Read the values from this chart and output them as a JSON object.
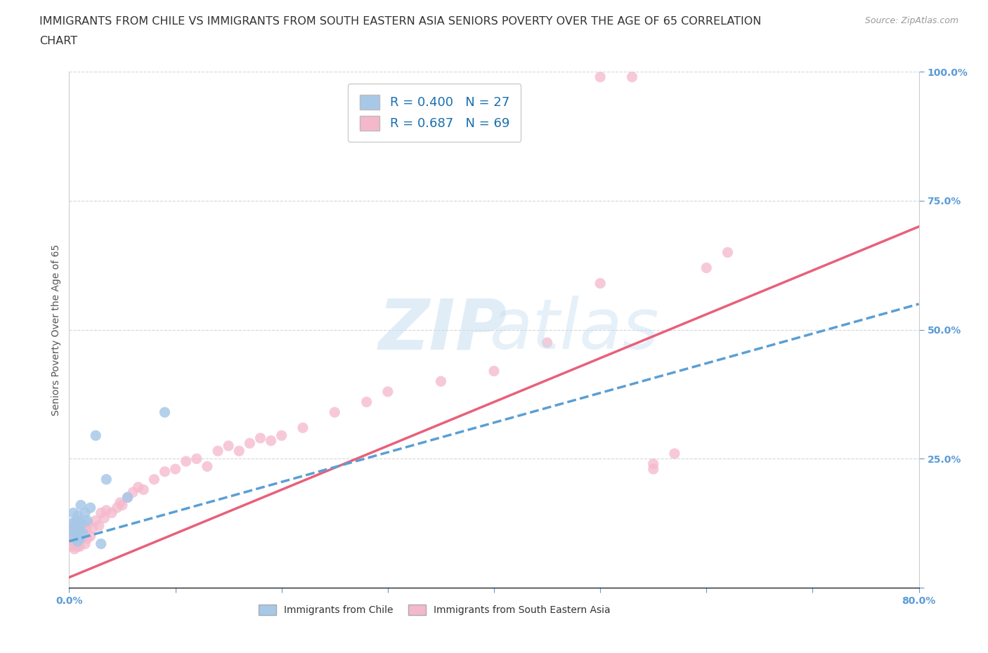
{
  "title_line1": "IMMIGRANTS FROM CHILE VS IMMIGRANTS FROM SOUTH EASTERN ASIA SENIORS POVERTY OVER THE AGE OF 65 CORRELATION",
  "title_line2": "CHART",
  "source": "Source: ZipAtlas.com",
  "ylabel": "Seniors Poverty Over the Age of 65",
  "xmin": 0.0,
  "xmax": 0.8,
  "ymin": 0.0,
  "ymax": 1.0,
  "xticks": [
    0.0,
    0.1,
    0.2,
    0.3,
    0.4,
    0.5,
    0.6,
    0.7,
    0.8
  ],
  "yticks": [
    0.0,
    0.25,
    0.5,
    0.75,
    1.0
  ],
  "ytick_labels": [
    "",
    "25.0%",
    "50.0%",
    "75.0%",
    "100.0%"
  ],
  "xtick_labels": [
    "0.0%",
    "",
    "",
    "",
    "",
    "",
    "",
    "",
    "80.0%"
  ],
  "chile_color": "#a8c8e8",
  "sea_color": "#f5b8cb",
  "chile_line_color": "#5a9fd4",
  "sea_line_color": "#e8607a",
  "R_chile": 0.4,
  "N_chile": 27,
  "R_sea": 0.687,
  "N_sea": 69,
  "background_color": "#ffffff",
  "grid_color": "#cccccc",
  "tick_color": "#5b9bd5",
  "title_fontsize": 11.5,
  "axis_label_fontsize": 10,
  "tick_fontsize": 10,
  "legend_fontsize": 13,
  "chile_scatter_x": [
    0.002,
    0.003,
    0.004,
    0.004,
    0.005,
    0.005,
    0.006,
    0.006,
    0.007,
    0.007,
    0.008,
    0.008,
    0.009,
    0.009,
    0.01,
    0.01,
    0.011,
    0.012,
    0.013,
    0.015,
    0.017,
    0.02,
    0.025,
    0.035,
    0.055,
    0.09,
    0.03
  ],
  "chile_scatter_y": [
    0.115,
    0.125,
    0.1,
    0.145,
    0.11,
    0.125,
    0.095,
    0.12,
    0.13,
    0.105,
    0.09,
    0.14,
    0.115,
    0.13,
    0.11,
    0.095,
    0.16,
    0.125,
    0.105,
    0.145,
    0.13,
    0.155,
    0.295,
    0.21,
    0.175,
    0.34,
    0.085
  ],
  "sea_scatter_x": [
    0.001,
    0.002,
    0.003,
    0.003,
    0.004,
    0.004,
    0.005,
    0.005,
    0.006,
    0.006,
    0.007,
    0.007,
    0.008,
    0.008,
    0.009,
    0.009,
    0.01,
    0.01,
    0.011,
    0.012,
    0.013,
    0.014,
    0.015,
    0.016,
    0.017,
    0.018,
    0.02,
    0.022,
    0.025,
    0.028,
    0.03,
    0.033,
    0.035,
    0.04,
    0.045,
    0.048,
    0.05,
    0.055,
    0.06,
    0.065,
    0.07,
    0.08,
    0.09,
    0.1,
    0.11,
    0.12,
    0.13,
    0.14,
    0.15,
    0.16,
    0.17,
    0.18,
    0.19,
    0.2,
    0.22,
    0.25,
    0.28,
    0.3,
    0.35,
    0.4,
    0.45,
    0.5,
    0.55,
    0.6,
    0.62,
    0.5,
    0.53,
    0.55,
    0.57
  ],
  "sea_scatter_y": [
    0.095,
    0.105,
    0.08,
    0.115,
    0.09,
    0.12,
    0.075,
    0.1,
    0.085,
    0.11,
    0.095,
    0.125,
    0.08,
    0.105,
    0.09,
    0.115,
    0.1,
    0.08,
    0.11,
    0.095,
    0.12,
    0.105,
    0.085,
    0.115,
    0.095,
    0.125,
    0.1,
    0.115,
    0.13,
    0.12,
    0.145,
    0.135,
    0.15,
    0.145,
    0.155,
    0.165,
    0.16,
    0.175,
    0.185,
    0.195,
    0.19,
    0.21,
    0.225,
    0.23,
    0.245,
    0.25,
    0.235,
    0.265,
    0.275,
    0.265,
    0.28,
    0.29,
    0.285,
    0.295,
    0.31,
    0.34,
    0.36,
    0.38,
    0.4,
    0.42,
    0.475,
    0.59,
    0.24,
    0.62,
    0.65,
    0.99,
    0.99,
    0.23,
    0.26
  ]
}
